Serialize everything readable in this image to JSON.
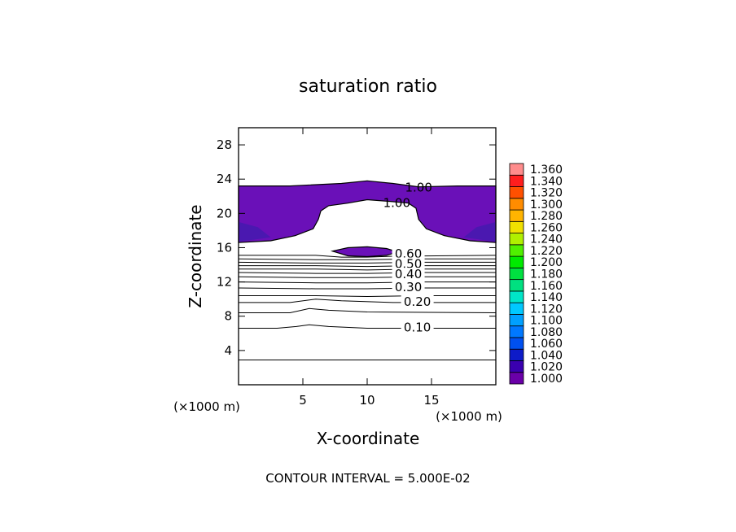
{
  "chart_data": {
    "type": "contour",
    "title": "saturation ratio",
    "xlabel": "X-coordinate",
    "ylabel": "Z-coordinate",
    "x_unit_note_left": "(×1000 m)",
    "x_unit_note_right": "(×1000 m)",
    "xlim": [
      0,
      20
    ],
    "ylim": [
      0,
      30
    ],
    "x_ticks": [
      {
        "value": 5,
        "label": "5"
      },
      {
        "value": 10,
        "label": "10"
      },
      {
        "value": 15,
        "label": "15"
      }
    ],
    "y_ticks": [
      {
        "value": 4,
        "label": "4"
      },
      {
        "value": 8,
        "label": "8"
      },
      {
        "value": 12,
        "label": "12"
      },
      {
        "value": 16,
        "label": "16"
      },
      {
        "value": 20,
        "label": "20"
      },
      {
        "value": 24,
        "label": "24"
      },
      {
        "value": 28,
        "label": "28"
      }
    ],
    "contour_interval_text": "CONTOUR INTERVAL = 5.000E-02",
    "contour_labels": [
      {
        "value": "1.00",
        "x": 14.0,
        "z": 23.0
      },
      {
        "value": "1.00",
        "x": 12.3,
        "z": 21.2
      },
      {
        "value": "0.60",
        "x": 13.2,
        "z": 15.3
      },
      {
        "value": "0.50",
        "x": 13.2,
        "z": 14.1
      },
      {
        "value": "0.40",
        "x": 13.2,
        "z": 12.9
      },
      {
        "value": "0.30",
        "x": 13.2,
        "z": 11.4
      },
      {
        "value": "0.20",
        "x": 13.9,
        "z": 9.7
      },
      {
        "value": "0.10",
        "x": 13.9,
        "z": 6.7
      }
    ],
    "colorbar": {
      "levels": [
        "1.000",
        "1.020",
        "1.040",
        "1.060",
        "1.080",
        "1.100",
        "1.120",
        "1.140",
        "1.160",
        "1.180",
        "1.200",
        "1.220",
        "1.240",
        "1.260",
        "1.280",
        "1.300",
        "1.320",
        "1.340",
        "1.360"
      ],
      "colors": [
        "#6a00a8",
        "#3a00b0",
        "#0d1bc8",
        "#0050f0",
        "#0078ff",
        "#00a0ff",
        "#00c8ff",
        "#00e6c8",
        "#00e080",
        "#00e040",
        "#00ea00",
        "#50f000",
        "#b0f000",
        "#f0e000",
        "#ffb400",
        "#ff8c00",
        "#ff5000",
        "#ff1e1e",
        "#ff8c8c"
      ]
    },
    "colors": {
      "fill": "#6a10b8",
      "fill_dark": "#4a18b0"
    }
  }
}
